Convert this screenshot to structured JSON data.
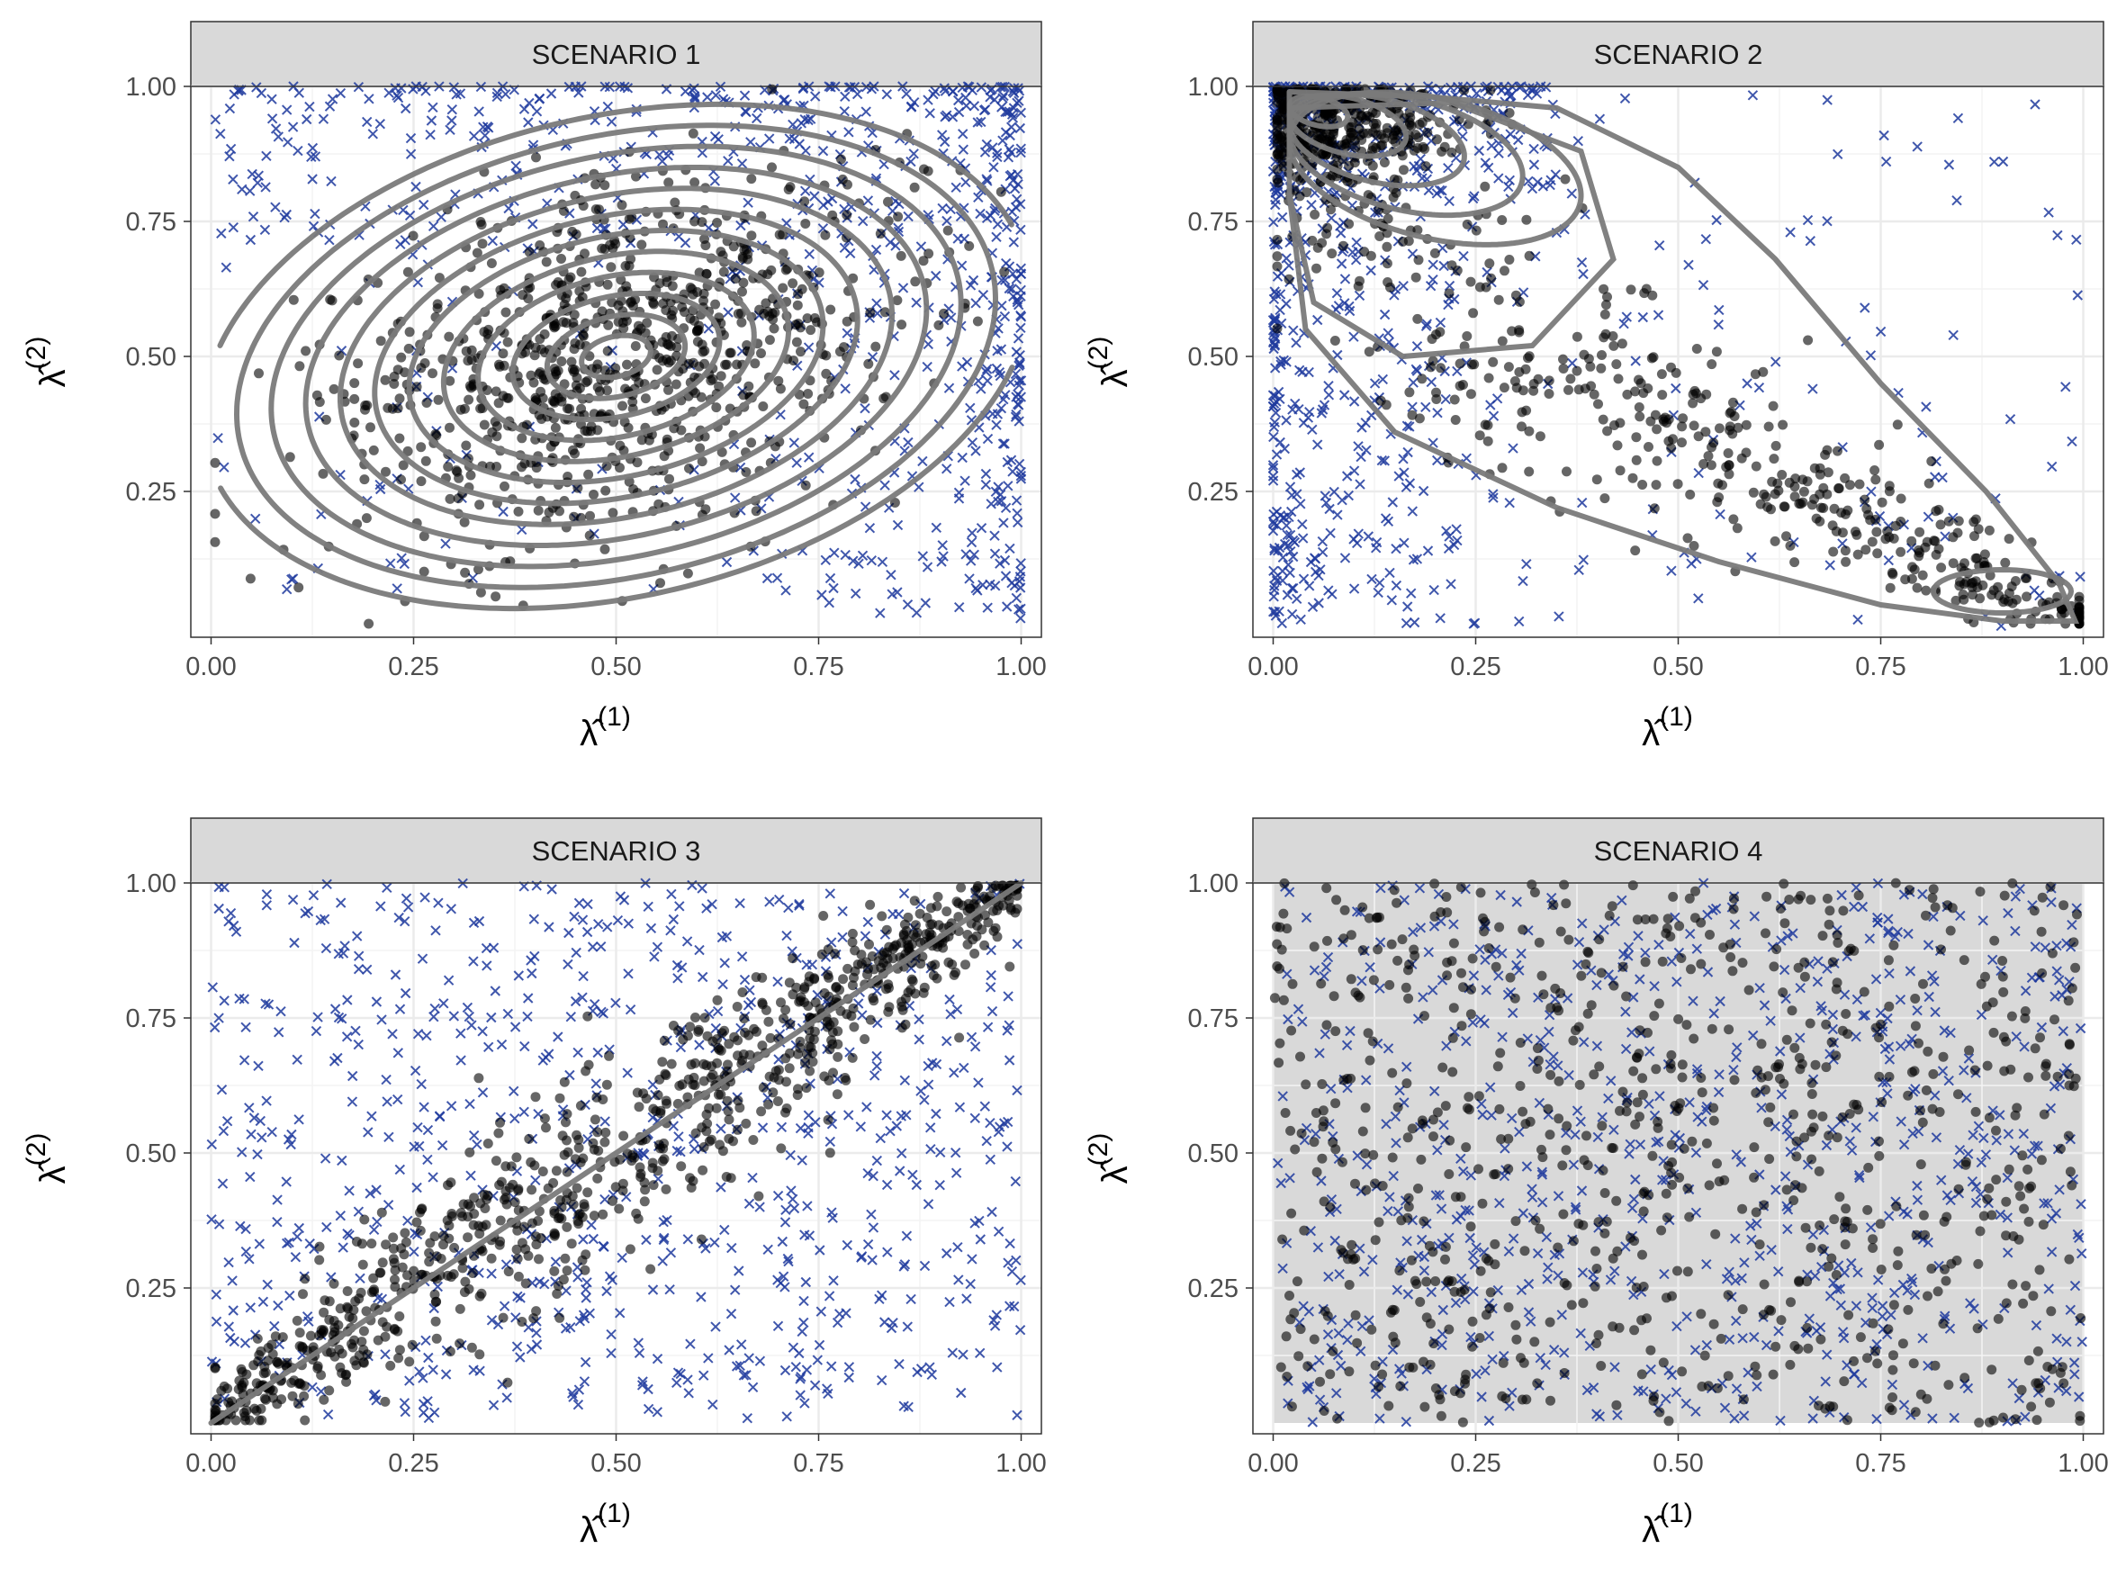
{
  "figure": {
    "point_color": "#000000",
    "cross_color": "#1f3a9e",
    "contour_color": "#7a7a7a",
    "strip_fill": "#d9d9d9",
    "grid_color": "#ebebeb"
  },
  "chart_data": [
    {
      "type": "scatter",
      "panel": "SCENARIO 1",
      "xlabel_symbol": "λ̂",
      "xlabel_sup": "(1)",
      "ylabel_symbol": "λ̂",
      "ylabel_sup": "(2)",
      "xlim": [
        0,
        1
      ],
      "ylim": [
        0,
        1
      ],
      "x_ticks": [
        "0.00",
        "0.25",
        "0.50",
        "0.75",
        "1.00"
      ],
      "y_ticks": [
        "0.25",
        "0.50",
        "0.75",
        "1.00"
      ],
      "gray_background": false,
      "series": [
        {
          "marker": "circle",
          "count": 1000,
          "distribution": "bivariate normal",
          "center": [
            0.5,
            0.5
          ],
          "sd": [
            0.17,
            0.17
          ],
          "correlation": 0.35
        },
        {
          "marker": "x",
          "count": 1000,
          "distribution": "concentrated near x=1 and y=1 edges"
        }
      ],
      "contours": {
        "type": "ellipse",
        "center": [
          0.5,
          0.5
        ],
        "levels": 12,
        "max_radius_x": 0.55,
        "max_radius_y": 0.5,
        "tilt_degrees": 35
      }
    },
    {
      "type": "scatter",
      "panel": "SCENARIO 2",
      "xlabel_symbol": "λ̂",
      "xlabel_sup": "(1)",
      "ylabel_symbol": "λ̂",
      "ylabel_sup": "(2)",
      "xlim": [
        0,
        1
      ],
      "ylim": [
        0,
        1
      ],
      "x_ticks": [
        "0.00",
        "0.25",
        "0.50",
        "0.75",
        "1.00"
      ],
      "y_ticks": [
        "0.25",
        "0.50",
        "0.75",
        "1.00"
      ],
      "gray_background": false,
      "series": [
        {
          "marker": "circle",
          "count": 1000,
          "distribution": "dense mode near (0.05, 0.95), tail toward (1, 0)"
        },
        {
          "marker": "x",
          "count": 1000,
          "distribution": "concentrated near x=0 edge and top-left corner"
        }
      ],
      "contours": {
        "type": "teardrop",
        "mode": [
          0.05,
          0.95
        ],
        "tail": [
          1.0,
          0.0
        ]
      }
    },
    {
      "type": "scatter",
      "panel": "SCENARIO 3",
      "xlabel_symbol": "λ̂",
      "xlabel_sup": "(1)",
      "ylabel_symbol": "λ̂",
      "ylabel_sup": "(2)",
      "xlim": [
        0,
        1
      ],
      "ylim": [
        0,
        1
      ],
      "x_ticks": [
        "0.00",
        "0.25",
        "0.50",
        "0.75",
        "1.00"
      ],
      "y_ticks": [
        "0.25",
        "0.50",
        "0.75",
        "1.00"
      ],
      "gray_background": false,
      "series": [
        {
          "marker": "circle",
          "count": 1000,
          "distribution": "along diagonal y=x, spread increasing to middle"
        },
        {
          "marker": "x",
          "count": 1000,
          "distribution": "uniform over unit square"
        }
      ],
      "contours": {
        "type": "line",
        "from": [
          0,
          0
        ],
        "to": [
          1,
          1
        ]
      }
    },
    {
      "type": "scatter",
      "panel": "SCENARIO 4",
      "xlabel_symbol": "λ̂",
      "xlabel_sup": "(1)",
      "ylabel_symbol": "λ̂",
      "ylabel_sup": "(2)",
      "xlim": [
        0,
        1
      ],
      "ylim": [
        0,
        1
      ],
      "x_ticks": [
        "0.00",
        "0.25",
        "0.50",
        "0.75",
        "1.00"
      ],
      "y_ticks": [
        "0.25",
        "0.50",
        "0.75",
        "1.00"
      ],
      "gray_background": true,
      "series": [
        {
          "marker": "circle",
          "count": 1000,
          "distribution": "uniform over unit square"
        },
        {
          "marker": "x",
          "count": 1000,
          "distribution": "uniform over unit square"
        }
      ],
      "contours": {
        "type": "none"
      }
    }
  ]
}
